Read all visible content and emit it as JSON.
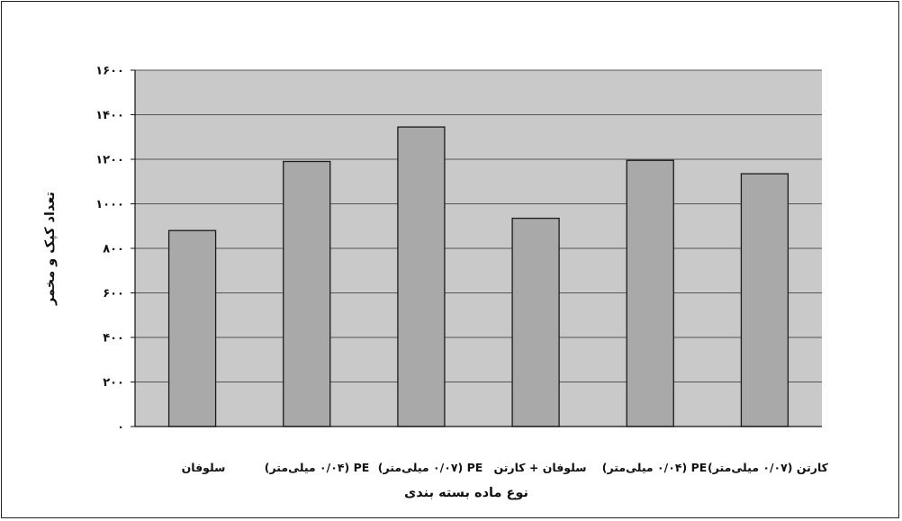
{
  "chart_data": {
    "type": "bar",
    "categories": [
      "سلوفان",
      "PE (۰/۰۴ میلی‌متر)",
      "PE (۰/۰۷ میلی‌متر)",
      "سلوفان + کارتن",
      "PE (۰/۰۴ میلی‌متر)",
      "کارتن (۰/۰۷ میلی‌متر)"
    ],
    "values": [
      880,
      1190,
      1345,
      935,
      1195,
      1135
    ],
    "ylim": [
      0,
      1600
    ],
    "yticks": [
      0,
      200,
      400,
      600,
      800,
      1000,
      1200,
      1400,
      1600
    ],
    "ytick_labels": [
      "۰",
      "۲۰۰",
      "۴۰۰",
      "۶۰۰",
      "۸۰۰",
      "۱۰۰۰",
      "۱۲۰۰",
      "۱۴۰۰",
      "۱۶۰۰"
    ],
    "xlabel": "نوع ماده بسته بندی",
    "ylabel": "تعداد کپک و مخمر",
    "grid": true,
    "legend": "none",
    "colors": {
      "plot_background": "#c9c9c9",
      "bar_fill": "#a9a9a9",
      "bar_stroke": "#1a1a1a",
      "grid": "#555555"
    }
  }
}
